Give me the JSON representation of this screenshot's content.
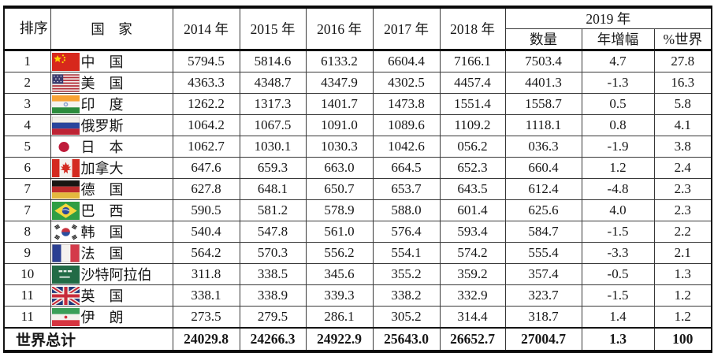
{
  "colors": {
    "background": "#ffffff",
    "text": "#161616",
    "border": "#000000"
  },
  "chart_data": {
    "type": "table",
    "header": {
      "rank": "排序",
      "country": "国　家",
      "years": [
        "2014 年",
        "2015 年",
        "2016 年",
        "2017 年",
        "2018 年"
      ],
      "year2019_label": "2019 年",
      "sub_2019": [
        "数量",
        "年增幅",
        "%世界"
      ]
    },
    "rows": [
      {
        "rank": "1",
        "flag": "china",
        "country": "中　国",
        "values": [
          "5794.5",
          "5814.6",
          "6133.2",
          "6604.4",
          "7166.1",
          "7503.4",
          "4.7",
          "27.8"
        ]
      },
      {
        "rank": "2",
        "flag": "usa",
        "country": "美　国",
        "values": [
          "4363.3",
          "4348.7",
          "4347.9",
          "4302.5",
          "4457.4",
          "4401.3",
          "-1.3",
          "16.3"
        ]
      },
      {
        "rank": "3",
        "flag": "india",
        "country": "印　度",
        "values": [
          "1262.2",
          "1317.3",
          "1401.7",
          "1473.8",
          "1551.4",
          "1558.7",
          "0.5",
          "5.8"
        ]
      },
      {
        "rank": "4",
        "flag": "russia",
        "country": "俄罗斯",
        "values": [
          "1064.2",
          "1067.5",
          "1091.0",
          "1089.6",
          "1109.2",
          "1118.1",
          "0.8",
          "4.1"
        ]
      },
      {
        "rank": "5",
        "flag": "japan",
        "country": "日　本",
        "values": [
          "1062.7",
          "1030.1",
          "1030.3",
          "1042.6",
          "056.2",
          "036.3",
          "-1.9",
          "3.8"
        ]
      },
      {
        "rank": "6",
        "flag": "canada",
        "country": "加拿大",
        "values": [
          "647.6",
          "659.3",
          "663.0",
          "664.5",
          "652.3",
          "660.4",
          "1.2",
          "2.4"
        ]
      },
      {
        "rank": "7",
        "flag": "germany",
        "country": "德　国",
        "values": [
          "627.8",
          "648.1",
          "650.7",
          "653.7",
          "643.5",
          "612.4",
          "-4.8",
          "2.3"
        ]
      },
      {
        "rank": "7",
        "flag": "brazil",
        "country": "巴　西",
        "values": [
          "590.5",
          "581.2",
          "578.9",
          "588.0",
          "601.4",
          "625.6",
          "4.0",
          "2.3"
        ]
      },
      {
        "rank": "8",
        "flag": "south-korea",
        "country": "韩　国",
        "values": [
          "540.4",
          "547.8",
          "561.0",
          "576.4",
          "593.4",
          "584.7",
          "-1.5",
          "2.2"
        ]
      },
      {
        "rank": "9",
        "flag": "france",
        "country": "法　国",
        "values": [
          "564.2",
          "570.3",
          "556.2",
          "554.1",
          "574.2",
          "555.4",
          "-3.3",
          "2.1"
        ]
      },
      {
        "rank": "10",
        "flag": "saudi-arabia",
        "country": "沙特阿拉伯",
        "values": [
          "311.8",
          "338.5",
          "345.6",
          "355.2",
          "359.2",
          "357.4",
          "-0.5",
          "1.3"
        ]
      },
      {
        "rank": "11",
        "flag": "uk",
        "country": "英　国",
        "values": [
          "338.1",
          "338.9",
          "339.3",
          "338.2",
          "332.9",
          "323.7",
          "-1.5",
          "1.2"
        ]
      },
      {
        "rank": "11",
        "flag": "iran",
        "country": "伊　朗",
        "values": [
          "273.5",
          "279.5",
          "286.1",
          "305.2",
          "314.4",
          "318.7",
          "1.4",
          "1.2"
        ]
      }
    ],
    "total": {
      "label": "世界总计",
      "values": [
        "24029.8",
        "24266.3",
        "24922.9",
        "25643.0",
        "26652.7",
        "27004.7",
        "1.3",
        "100"
      ]
    }
  }
}
